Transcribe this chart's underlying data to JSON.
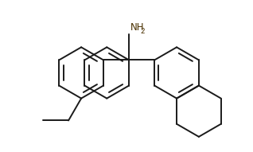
{
  "bg_color": "#ffffff",
  "line_color": "#1a1a1a",
  "line_width": 1.4,
  "nh2_color": "#4a3000",
  "figsize": [
    3.18,
    1.91
  ],
  "dpi": 100,
  "nh2_fontsize": 8.5,
  "nh2_sub_fontsize": 6.5,
  "r_hex": 0.52,
  "xlim": [
    -2.6,
    2.5
  ],
  "ylim": [
    -1.65,
    1.0
  ]
}
